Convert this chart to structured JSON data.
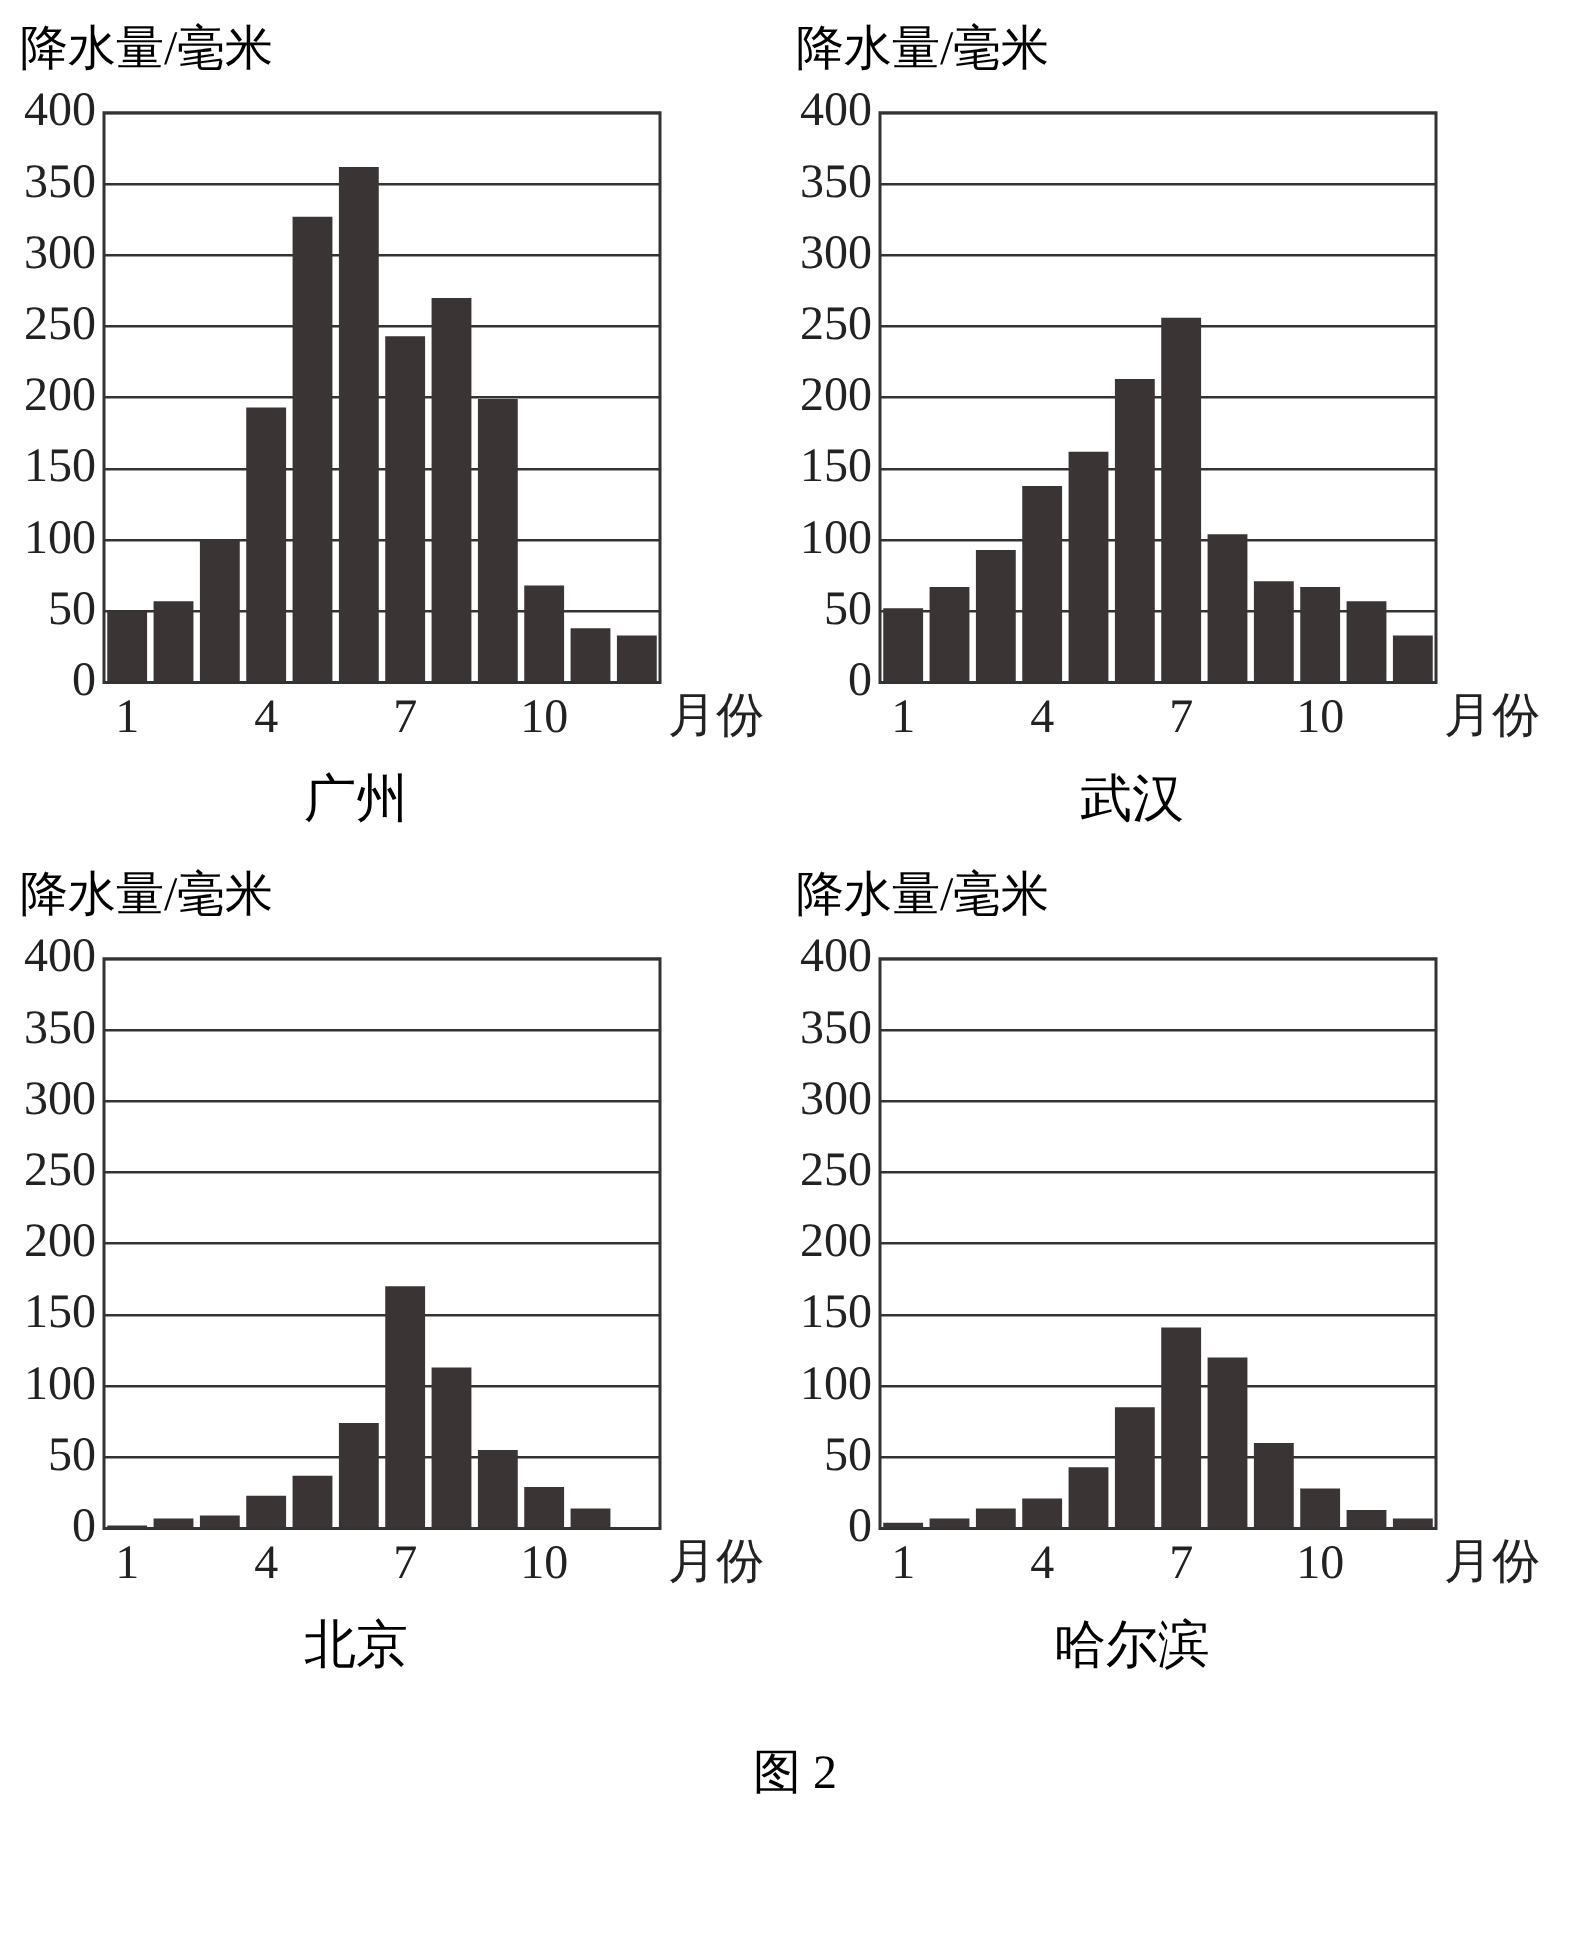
{
  "chart_data": [
    {
      "type": "bar",
      "title": "广州",
      "ylabel": "降水量/毫米",
      "xlabel": "月份",
      "categories": [
        "1",
        null,
        null,
        "4",
        null,
        null,
        "7",
        null,
        null,
        "10",
        null,
        null
      ],
      "values": [
        50,
        57,
        100,
        193,
        327,
        362,
        243,
        270,
        199,
        68,
        38,
        33
      ],
      "color": "#3a3434",
      "ylim": [
        0,
        400
      ],
      "yticks": [
        0,
        50,
        100,
        150,
        200,
        250,
        300,
        350,
        400
      ],
      "grid": "y",
      "legend": false
    },
    {
      "type": "bar",
      "title": "武汉",
      "ylabel": "降水量/毫米",
      "xlabel": "月份",
      "categories": [
        "1",
        null,
        null,
        "4",
        null,
        null,
        "7",
        null,
        null,
        "10",
        null,
        null
      ],
      "values": [
        52,
        67,
        93,
        138,
        162,
        213,
        256,
        104,
        71,
        67,
        57,
        33
      ],
      "color": "#3a3434",
      "ylim": [
        0,
        400
      ],
      "yticks": [
        0,
        50,
        100,
        150,
        200,
        250,
        300,
        350,
        400
      ],
      "grid": "y",
      "legend": false
    },
    {
      "type": "bar",
      "title": "北京",
      "ylabel": "降水量/毫米",
      "xlabel": "月份",
      "categories": [
        "1",
        null,
        null,
        "4",
        null,
        null,
        "7",
        null,
        null,
        "10",
        null,
        null
      ],
      "values": [
        2,
        7,
        9,
        23,
        37,
        74,
        170,
        113,
        55,
        29,
        14,
        1
      ],
      "color": "#3a3434",
      "ylim": [
        0,
        400
      ],
      "yticks": [
        0,
        50,
        100,
        150,
        200,
        250,
        300,
        350,
        400
      ],
      "grid": "y",
      "legend": false
    },
    {
      "type": "bar",
      "title": "哈尔滨",
      "ylabel": "降水量/毫米",
      "xlabel": "月份",
      "categories": [
        "1",
        null,
        null,
        "4",
        null,
        null,
        "7",
        null,
        null,
        "10",
        null,
        null
      ],
      "values": [
        4,
        7,
        14,
        21,
        43,
        85,
        141,
        120,
        60,
        28,
        13,
        7
      ],
      "color": "#3a3434",
      "ylim": [
        0,
        400
      ],
      "yticks": [
        0,
        50,
        100,
        150,
        200,
        250,
        300,
        350,
        400
      ],
      "grid": "y",
      "legend": false,
      "annotations": [
        "图 2"
      ]
    }
  ]
}
